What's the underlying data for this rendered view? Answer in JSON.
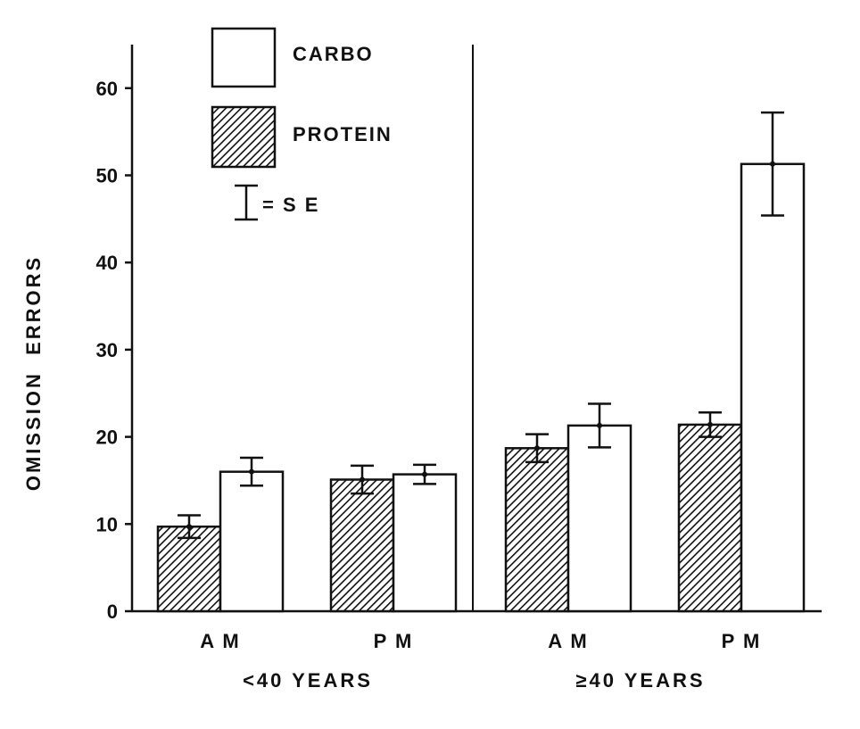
{
  "chart_data": {
    "type": "bar",
    "title": "",
    "ylabel": "OMISSION  ERRORS",
    "xlabel": "",
    "ylim": [
      0,
      65
    ],
    "yticks": [
      0,
      10,
      20,
      30,
      40,
      50,
      60
    ],
    "grid": false,
    "legend_position": "top-left",
    "groups": [
      {
        "label": "<40  YEARS",
        "categories": [
          "A M",
          "P M"
        ]
      },
      {
        "label": "≥40  YEARS",
        "categories": [
          "A M",
          "P M"
        ]
      }
    ],
    "series": [
      {
        "name": "PROTEIN",
        "fill": "hatched",
        "values": [
          9.7,
          15.1,
          18.7,
          21.4
        ],
        "se": [
          1.3,
          1.6,
          1.6,
          1.4
        ]
      },
      {
        "name": "CARBO",
        "fill": "white",
        "values": [
          16.0,
          15.7,
          21.3,
          51.3
        ],
        "se": [
          1.6,
          1.1,
          2.5,
          5.9
        ]
      }
    ],
    "legend": {
      "carbo_label": "CARBO",
      "protein_label": "PROTEIN",
      "se_label": "= S E"
    }
  }
}
